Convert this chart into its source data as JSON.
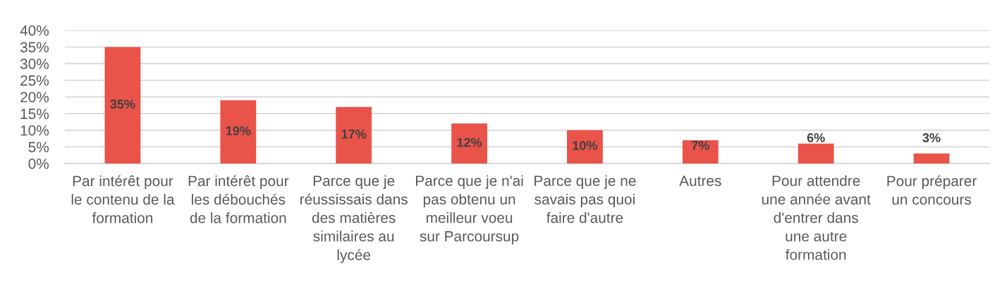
{
  "chart_data": {
    "type": "bar",
    "categories": [
      "Par intérêt pour\nle contenu de la\nformation",
      "Par intérêt pour\nles débouchés\nde la formation",
      "Parce que je\nréussissais dans\ndes matières\nsimilaires au\nlycée",
      "Parce que je n'ai\npas obtenu un\nmeilleur voeu\nsur Parcoursup",
      "Parce que je ne\nsavais pas quoi\nfaire d'autre",
      "Autres",
      "Pour attendre\nune année avant\nd'entrer dans\nune autre\nformation",
      "Pour préparer\nun concours"
    ],
    "values": [
      35,
      19,
      17,
      12,
      10,
      7,
      6,
      3
    ],
    "value_labels": [
      "35%",
      "19%",
      "17%",
      "12%",
      "10%",
      "7%",
      "6%",
      "3%"
    ],
    "color": "#e9534a",
    "ylim": [
      0,
      40
    ],
    "yticks": [
      {
        "value": 0,
        "label": "0%"
      },
      {
        "value": 5,
        "label": "5%"
      },
      {
        "value": 10,
        "label": "10%"
      },
      {
        "value": 15,
        "label": "15%"
      },
      {
        "value": 20,
        "label": "20%"
      },
      {
        "value": 25,
        "label": "25%"
      },
      {
        "value": 30,
        "label": "30%"
      },
      {
        "value": 35,
        "label": "35%"
      },
      {
        "value": 40,
        "label": "40%"
      }
    ],
    "grid": "y"
  }
}
